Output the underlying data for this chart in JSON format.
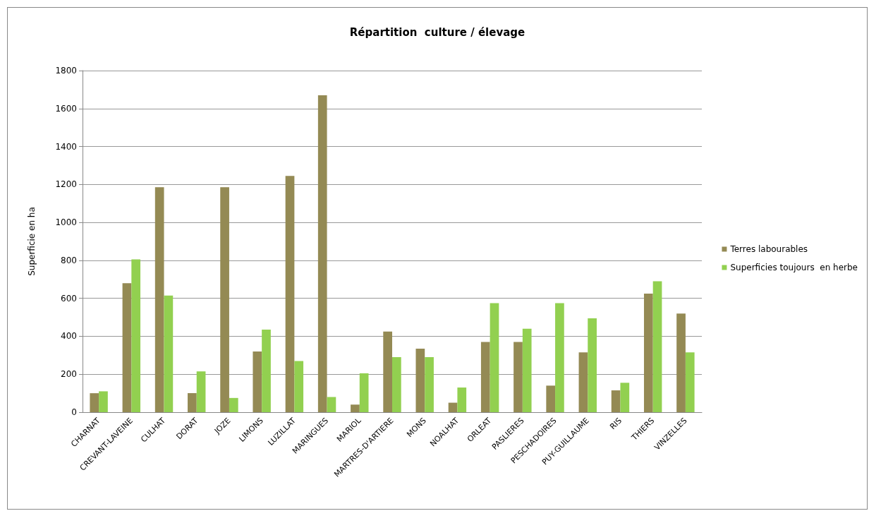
{
  "chart_data": {
    "type": "bar",
    "title": "Répartition  culture / élevage",
    "ylabel": "Superficie en ha",
    "categories": [
      "CHARNAT",
      "CREVANT-LAVEINE",
      "CULHAT",
      "DORAT",
      "JOZE",
      "LIMONS",
      "LUZILLAT",
      "MARINGUES",
      "MARIOL",
      "MARTRES-D'ARTIERE",
      "MONS",
      "NOALHAT",
      "ORLEAT",
      "PASLIERES",
      "PESCHADOIRES",
      "PUY-GUILLAUME",
      "RIS",
      "THIERS",
      "VINZELLES"
    ],
    "series": [
      {
        "name": "Terres labourables",
        "color": "#948a54",
        "values": [
          100,
          680,
          1185,
          100,
          1185,
          320,
          1245,
          1670,
          40,
          425,
          335,
          50,
          370,
          370,
          140,
          315,
          115,
          625,
          520
        ]
      },
      {
        "name": "Superficies toujours  en herbe",
        "color": "#92d050",
        "values": [
          110,
          805,
          615,
          215,
          75,
          435,
          270,
          80,
          205,
          290,
          290,
          130,
          575,
          440,
          575,
          495,
          155,
          690,
          315
        ]
      }
    ],
    "ylim": [
      0,
      1800
    ],
    "yticks": [
      0,
      200,
      400,
      600,
      800,
      1000,
      1200,
      1400,
      1600,
      1800
    ],
    "grid": "y",
    "legend": "right"
  }
}
